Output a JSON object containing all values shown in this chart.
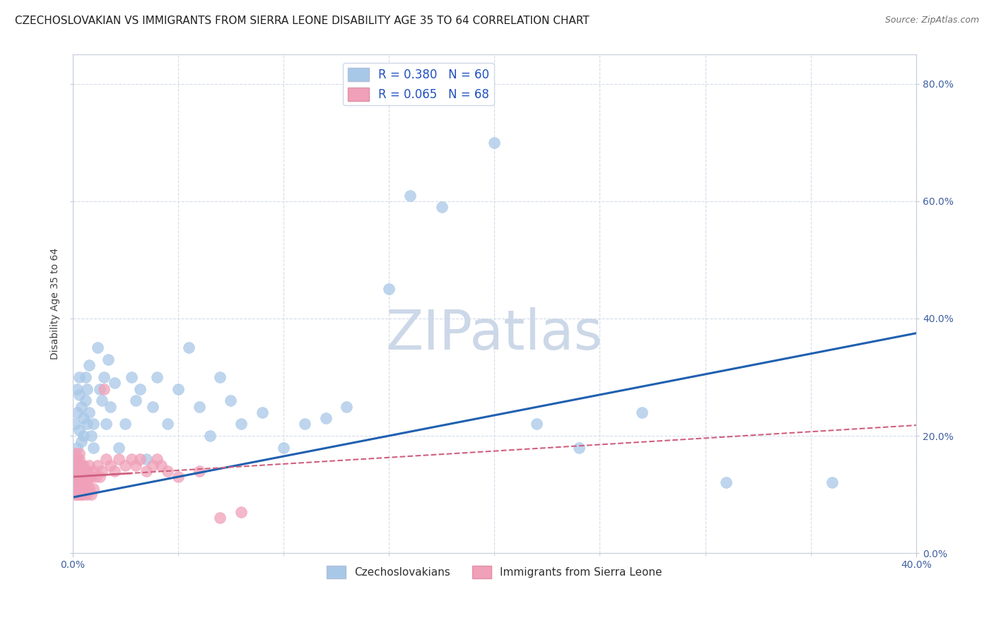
{
  "title": "CZECHOSLOVAKIAN VS IMMIGRANTS FROM SIERRA LEONE DISABILITY AGE 35 TO 64 CORRELATION CHART",
  "source": "Source: ZipAtlas.com",
  "ylabel": "Disability Age 35 to 64",
  "watermark": "ZIPatlas",
  "series": [
    {
      "label": "Czechoslovakians",
      "R": 0.38,
      "N": 60,
      "color": "#a8c8e8",
      "edge_color": "#a8c8e8",
      "line_color": "#2060b0",
      "line_style": "solid",
      "x": [
        0.0,
        0.001,
        0.001,
        0.002,
        0.002,
        0.002,
        0.003,
        0.003,
        0.003,
        0.004,
        0.004,
        0.005,
        0.005,
        0.006,
        0.006,
        0.007,
        0.007,
        0.008,
        0.008,
        0.009,
        0.01,
        0.01,
        0.012,
        0.013,
        0.014,
        0.015,
        0.016,
        0.017,
        0.018,
        0.02,
        0.022,
        0.025,
        0.028,
        0.03,
        0.032,
        0.035,
        0.038,
        0.04,
        0.045,
        0.05,
        0.055,
        0.06,
        0.065,
        0.07,
        0.075,
        0.08,
        0.09,
        0.1,
        0.11,
        0.12,
        0.13,
        0.15,
        0.16,
        0.175,
        0.2,
        0.22,
        0.24,
        0.27,
        0.31,
        0.36
      ],
      "y": [
        0.13,
        0.16,
        0.22,
        0.18,
        0.24,
        0.28,
        0.21,
        0.27,
        0.3,
        0.19,
        0.25,
        0.2,
        0.23,
        0.26,
        0.3,
        0.22,
        0.28,
        0.24,
        0.32,
        0.2,
        0.18,
        0.22,
        0.35,
        0.28,
        0.26,
        0.3,
        0.22,
        0.33,
        0.25,
        0.29,
        0.18,
        0.22,
        0.3,
        0.26,
        0.28,
        0.16,
        0.25,
        0.3,
        0.22,
        0.28,
        0.35,
        0.25,
        0.2,
        0.3,
        0.26,
        0.22,
        0.24,
        0.18,
        0.22,
        0.23,
        0.25,
        0.45,
        0.61,
        0.59,
        0.7,
        0.22,
        0.18,
        0.24,
        0.12,
        0.12
      ],
      "trend_x0": 0.0,
      "trend_y0": 0.095,
      "trend_x1": 0.4,
      "trend_y1": 0.375
    },
    {
      "label": "Immigrants from Sierra Leone",
      "R": 0.065,
      "N": 68,
      "color": "#f0a0b8",
      "edge_color": "#f0a0b8",
      "line_color": "#d06080",
      "line_style": "dashed",
      "x": [
        0.0,
        0.0,
        0.0,
        0.001,
        0.001,
        0.001,
        0.001,
        0.001,
        0.001,
        0.002,
        0.002,
        0.002,
        0.002,
        0.002,
        0.002,
        0.002,
        0.003,
        0.003,
        0.003,
        0.003,
        0.003,
        0.003,
        0.003,
        0.003,
        0.004,
        0.004,
        0.004,
        0.004,
        0.005,
        0.005,
        0.005,
        0.005,
        0.006,
        0.006,
        0.006,
        0.006,
        0.007,
        0.007,
        0.007,
        0.008,
        0.008,
        0.008,
        0.009,
        0.009,
        0.01,
        0.01,
        0.011,
        0.012,
        0.013,
        0.014,
        0.015,
        0.016,
        0.018,
        0.02,
        0.022,
        0.025,
        0.028,
        0.03,
        0.032,
        0.035,
        0.038,
        0.04,
        0.042,
        0.045,
        0.05,
        0.06,
        0.07,
        0.08
      ],
      "y": [
        0.13,
        0.14,
        0.15,
        0.1,
        0.12,
        0.14,
        0.15,
        0.16,
        0.17,
        0.1,
        0.11,
        0.12,
        0.13,
        0.14,
        0.15,
        0.16,
        0.1,
        0.11,
        0.12,
        0.13,
        0.14,
        0.15,
        0.16,
        0.17,
        0.1,
        0.11,
        0.13,
        0.15,
        0.1,
        0.11,
        0.13,
        0.15,
        0.11,
        0.12,
        0.13,
        0.14,
        0.1,
        0.12,
        0.14,
        0.11,
        0.13,
        0.15,
        0.1,
        0.13,
        0.11,
        0.14,
        0.13,
        0.15,
        0.13,
        0.14,
        0.28,
        0.16,
        0.15,
        0.14,
        0.16,
        0.15,
        0.16,
        0.15,
        0.16,
        0.14,
        0.15,
        0.16,
        0.15,
        0.14,
        0.13,
        0.14,
        0.06,
        0.07
      ],
      "trend_x0": 0.0,
      "trend_y0": 0.13,
      "trend_x1": 0.4,
      "trend_y1": 0.218
    }
  ],
  "xlim": [
    0.0,
    0.4
  ],
  "ylim": [
    0.0,
    0.85
  ],
  "xtick_shown": [
    0.0,
    0.4
  ],
  "xtick_minor": [
    0.05,
    0.1,
    0.15,
    0.2,
    0.25,
    0.3,
    0.35
  ],
  "yticks_right": [
    0.0,
    0.2,
    0.4,
    0.6,
    0.8
  ],
  "background_color": "#ffffff",
  "grid_color": "#d0d8e8",
  "title_fontsize": 11,
  "axis_label_fontsize": 10,
  "tick_fontsize": 10,
  "legend_fontsize": 12,
  "watermark_color": "#ccd8e8",
  "watermark_fontsize": 56
}
